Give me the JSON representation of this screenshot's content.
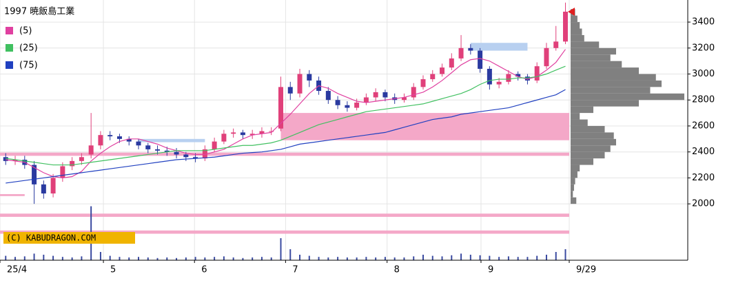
{
  "chart_data": {
    "type": "candlestick",
    "title": "1997 暁飯島工業",
    "copyright": "(C) KABUDRAGON.COM",
    "x": [
      0,
      1,
      2,
      3,
      4,
      5,
      6,
      7,
      8,
      9,
      10,
      11,
      12,
      13,
      14,
      15,
      16,
      17,
      18,
      19,
      20,
      21,
      22,
      23,
      24,
      25,
      26,
      27,
      28,
      29,
      30,
      31,
      32,
      33,
      34,
      35,
      36,
      37,
      38,
      39,
      40,
      41,
      42,
      43,
      44,
      45,
      46,
      47,
      48,
      49,
      50,
      51,
      52,
      53,
      54,
      55,
      56,
      57,
      58,
      59
    ],
    "xlim": [
      -0.6,
      59.4
    ],
    "xticks": [
      {
        "value": -0.6,
        "label": "25/4"
      },
      {
        "value": 10.3,
        "label": "5"
      },
      {
        "value": 19.9,
        "label": "6"
      },
      {
        "value": 29.5,
        "label": "7"
      },
      {
        "value": 40.2,
        "label": "8"
      },
      {
        "value": 50.1,
        "label": "9"
      },
      {
        "value": 59.4,
        "label": "9/29"
      }
    ],
    "ylim": [
      1566,
      3570
    ],
    "yticks": [
      2000,
      2200,
      2400,
      2600,
      2800,
      3000,
      3200,
      3400
    ],
    "grid": true,
    "up_color": "#e0407a",
    "down_color": "#2a3aa0",
    "open": [
      2360,
      2330,
      2340,
      2300,
      2150,
      2080,
      2200,
      2290,
      2330,
      2380,
      2450,
      2530,
      2520,
      2500,
      2480,
      2450,
      2420,
      2410,
      2400,
      2380,
      2360,
      2350,
      2420,
      2480,
      2540,
      2550,
      2530,
      2540,
      2560,
      2580,
      2900,
      2850,
      3000,
      2950,
      2870,
      2800,
      2760,
      2740,
      2780,
      2820,
      2860,
      2820,
      2800,
      2820,
      2900,
      2960,
      3000,
      3050,
      3120,
      3200,
      3180,
      3040,
      2920,
      2940,
      3000,
      2980,
      2950,
      3060,
      3200,
      3250
    ],
    "high": [
      2390,
      2370,
      2370,
      2330,
      2180,
      2230,
      2320,
      2360,
      2390,
      2700,
      2560,
      2560,
      2540,
      2520,
      2500,
      2470,
      2450,
      2440,
      2430,
      2400,
      2390,
      2450,
      2510,
      2570,
      2580,
      2570,
      2570,
      2590,
      2590,
      2980,
      2940,
      3040,
      3030,
      2980,
      2900,
      2830,
      2790,
      2810,
      2850,
      2890,
      2880,
      2850,
      2850,
      2930,
      2990,
      3030,
      3080,
      3160,
      3300,
      3230,
      3200,
      3060,
      2970,
      3030,
      3020,
      3000,
      3090,
      3240,
      3370,
      3550
    ],
    "low": [
      2300,
      2300,
      2270,
      2000,
      2040,
      2050,
      2170,
      2260,
      2300,
      2350,
      2420,
      2490,
      2470,
      2450,
      2420,
      2390,
      2380,
      2370,
      2350,
      2330,
      2320,
      2330,
      2400,
      2460,
      2510,
      2500,
      2500,
      2510,
      2530,
      2560,
      2800,
      2820,
      2900,
      2840,
      2770,
      2730,
      2710,
      2720,
      2760,
      2790,
      2790,
      2770,
      2780,
      2800,
      2880,
      2940,
      2980,
      3030,
      3100,
      3150,
      3010,
      2880,
      2890,
      2920,
      2950,
      2920,
      2930,
      3040,
      3180,
      3230
    ],
    "close": [
      2330,
      2340,
      2300,
      2150,
      2080,
      2200,
      2290,
      2330,
      2360,
      2450,
      2530,
      2520,
      2500,
      2480,
      2450,
      2420,
      2410,
      2400,
      2380,
      2360,
      2350,
      2420,
      2480,
      2540,
      2550,
      2530,
      2540,
      2560,
      2560,
      2900,
      2850,
      3000,
      2950,
      2870,
      2800,
      2760,
      2740,
      2780,
      2820,
      2860,
      2820,
      2800,
      2820,
      2900,
      2960,
      3000,
      3050,
      3120,
      3200,
      3180,
      3040,
      2920,
      2940,
      3000,
      2980,
      2950,
      3060,
      3200,
      3250,
      3480
    ],
    "series": [
      {
        "name": "(5)",
        "color": "#e040a0",
        "values": [
          2340,
          2330,
          2320,
          2280,
          2240,
          2210,
          2200,
          2210,
          2250,
          2330,
          2390,
          2440,
          2480,
          2500,
          2500,
          2480,
          2460,
          2430,
          2410,
          2390,
          2380,
          2380,
          2400,
          2420,
          2460,
          2500,
          2530,
          2540,
          2550,
          2620,
          2690,
          2770,
          2850,
          2910,
          2890,
          2850,
          2820,
          2790,
          2780,
          2790,
          2800,
          2810,
          2820,
          2840,
          2860,
          2900,
          2950,
          3010,
          3070,
          3110,
          3120,
          3100,
          3060,
          3020,
          2980,
          2960,
          2980,
          3030,
          3090,
          3190
        ]
      },
      {
        "name": "(25)",
        "color": "#40c060",
        "values": [
          2350,
          2340,
          2330,
          2320,
          2310,
          2300,
          2300,
          2300,
          2310,
          2320,
          2330,
          2340,
          2350,
          2360,
          2370,
          2380,
          2390,
          2400,
          2410,
          2410,
          2410,
          2410,
          2420,
          2430,
          2440,
          2450,
          2450,
          2460,
          2470,
          2490,
          2520,
          2550,
          2580,
          2610,
          2630,
          2650,
          2670,
          2690,
          2710,
          2720,
          2730,
          2740,
          2750,
          2760,
          2770,
          2790,
          2810,
          2830,
          2850,
          2880,
          2920,
          2950,
          2960,
          2960,
          2970,
          2970,
          2980,
          3000,
          3030,
          3060
        ]
      },
      {
        "name": "(75)",
        "color": "#2040c0",
        "values": [
          2160,
          2170,
          2180,
          2190,
          2200,
          2210,
          2220,
          2230,
          2240,
          2250,
          2260,
          2270,
          2280,
          2290,
          2300,
          2310,
          2320,
          2330,
          2340,
          2345,
          2350,
          2355,
          2360,
          2370,
          2380,
          2390,
          2395,
          2400,
          2410,
          2420,
          2440,
          2460,
          2470,
          2480,
          2490,
          2500,
          2510,
          2520,
          2530,
          2540,
          2550,
          2570,
          2590,
          2610,
          2630,
          2650,
          2660,
          2670,
          2690,
          2700,
          2710,
          2720,
          2730,
          2740,
          2760,
          2780,
          2800,
          2820,
          2840,
          2880
        ]
      }
    ],
    "volume": [
      8,
      6,
      7,
      12,
      10,
      8,
      6,
      5,
      7,
      98,
      15,
      8,
      6,
      5,
      6,
      5,
      4,
      5,
      4,
      5,
      6,
      5,
      6,
      7,
      5,
      4,
      5,
      6,
      5,
      40,
      20,
      10,
      8,
      6,
      5,
      6,
      5,
      5,
      6,
      5,
      6,
      5,
      5,
      7,
      10,
      8,
      7,
      9,
      12,
      10,
      9,
      8,
      6,
      7,
      6,
      6,
      8,
      10,
      15,
      20
    ],
    "volume_ylim": [
      0,
      100
    ],
    "volume_color": "#3a4aa0",
    "profile_bins": [
      2000,
      2050,
      2100,
      2150,
      2200,
      2250,
      2300,
      2350,
      2400,
      2450,
      2500,
      2550,
      2600,
      2650,
      2700,
      2750,
      2800,
      2850,
      2900,
      2950,
      3000,
      3050,
      3100,
      3150,
      3200,
      3250,
      3300,
      3350,
      3400,
      3450,
      3500
    ],
    "profile_values": [
      5,
      2,
      3,
      4,
      6,
      8,
      20,
      30,
      35,
      40,
      38,
      30,
      15,
      8,
      20,
      60,
      100,
      70,
      80,
      75,
      60,
      45,
      35,
      40,
      25,
      12,
      10,
      8,
      6,
      4
    ],
    "profile_xlim": [
      0,
      100
    ],
    "profile_color": "#808080",
    "zones": [
      {
        "low": 2490,
        "high": 2700,
        "start": 29,
        "end": 59.4,
        "color": "#f4a8c8"
      },
      {
        "low": 2370,
        "high": 2395,
        "start": -0.6,
        "end": 59.4,
        "color": "#f4a8c8"
      },
      {
        "low": 1900,
        "high": 1925,
        "start": -0.6,
        "end": 59.4,
        "color": "#f4a8c8"
      },
      {
        "low": 1770,
        "high": 1795,
        "start": -0.6,
        "end": 59.4,
        "color": "#f4a8c8"
      },
      {
        "low": 2060,
        "high": 2075,
        "start": -0.6,
        "end": 2,
        "color": "#f4a8c8"
      },
      {
        "low": 2475,
        "high": 2500,
        "start": 14,
        "end": 21,
        "color": "#b8d0f0"
      },
      {
        "low": 3180,
        "high": 3240,
        "start": 49,
        "end": 55,
        "color": "#b8d0f0"
      }
    ],
    "marker_color": "#e02020"
  }
}
